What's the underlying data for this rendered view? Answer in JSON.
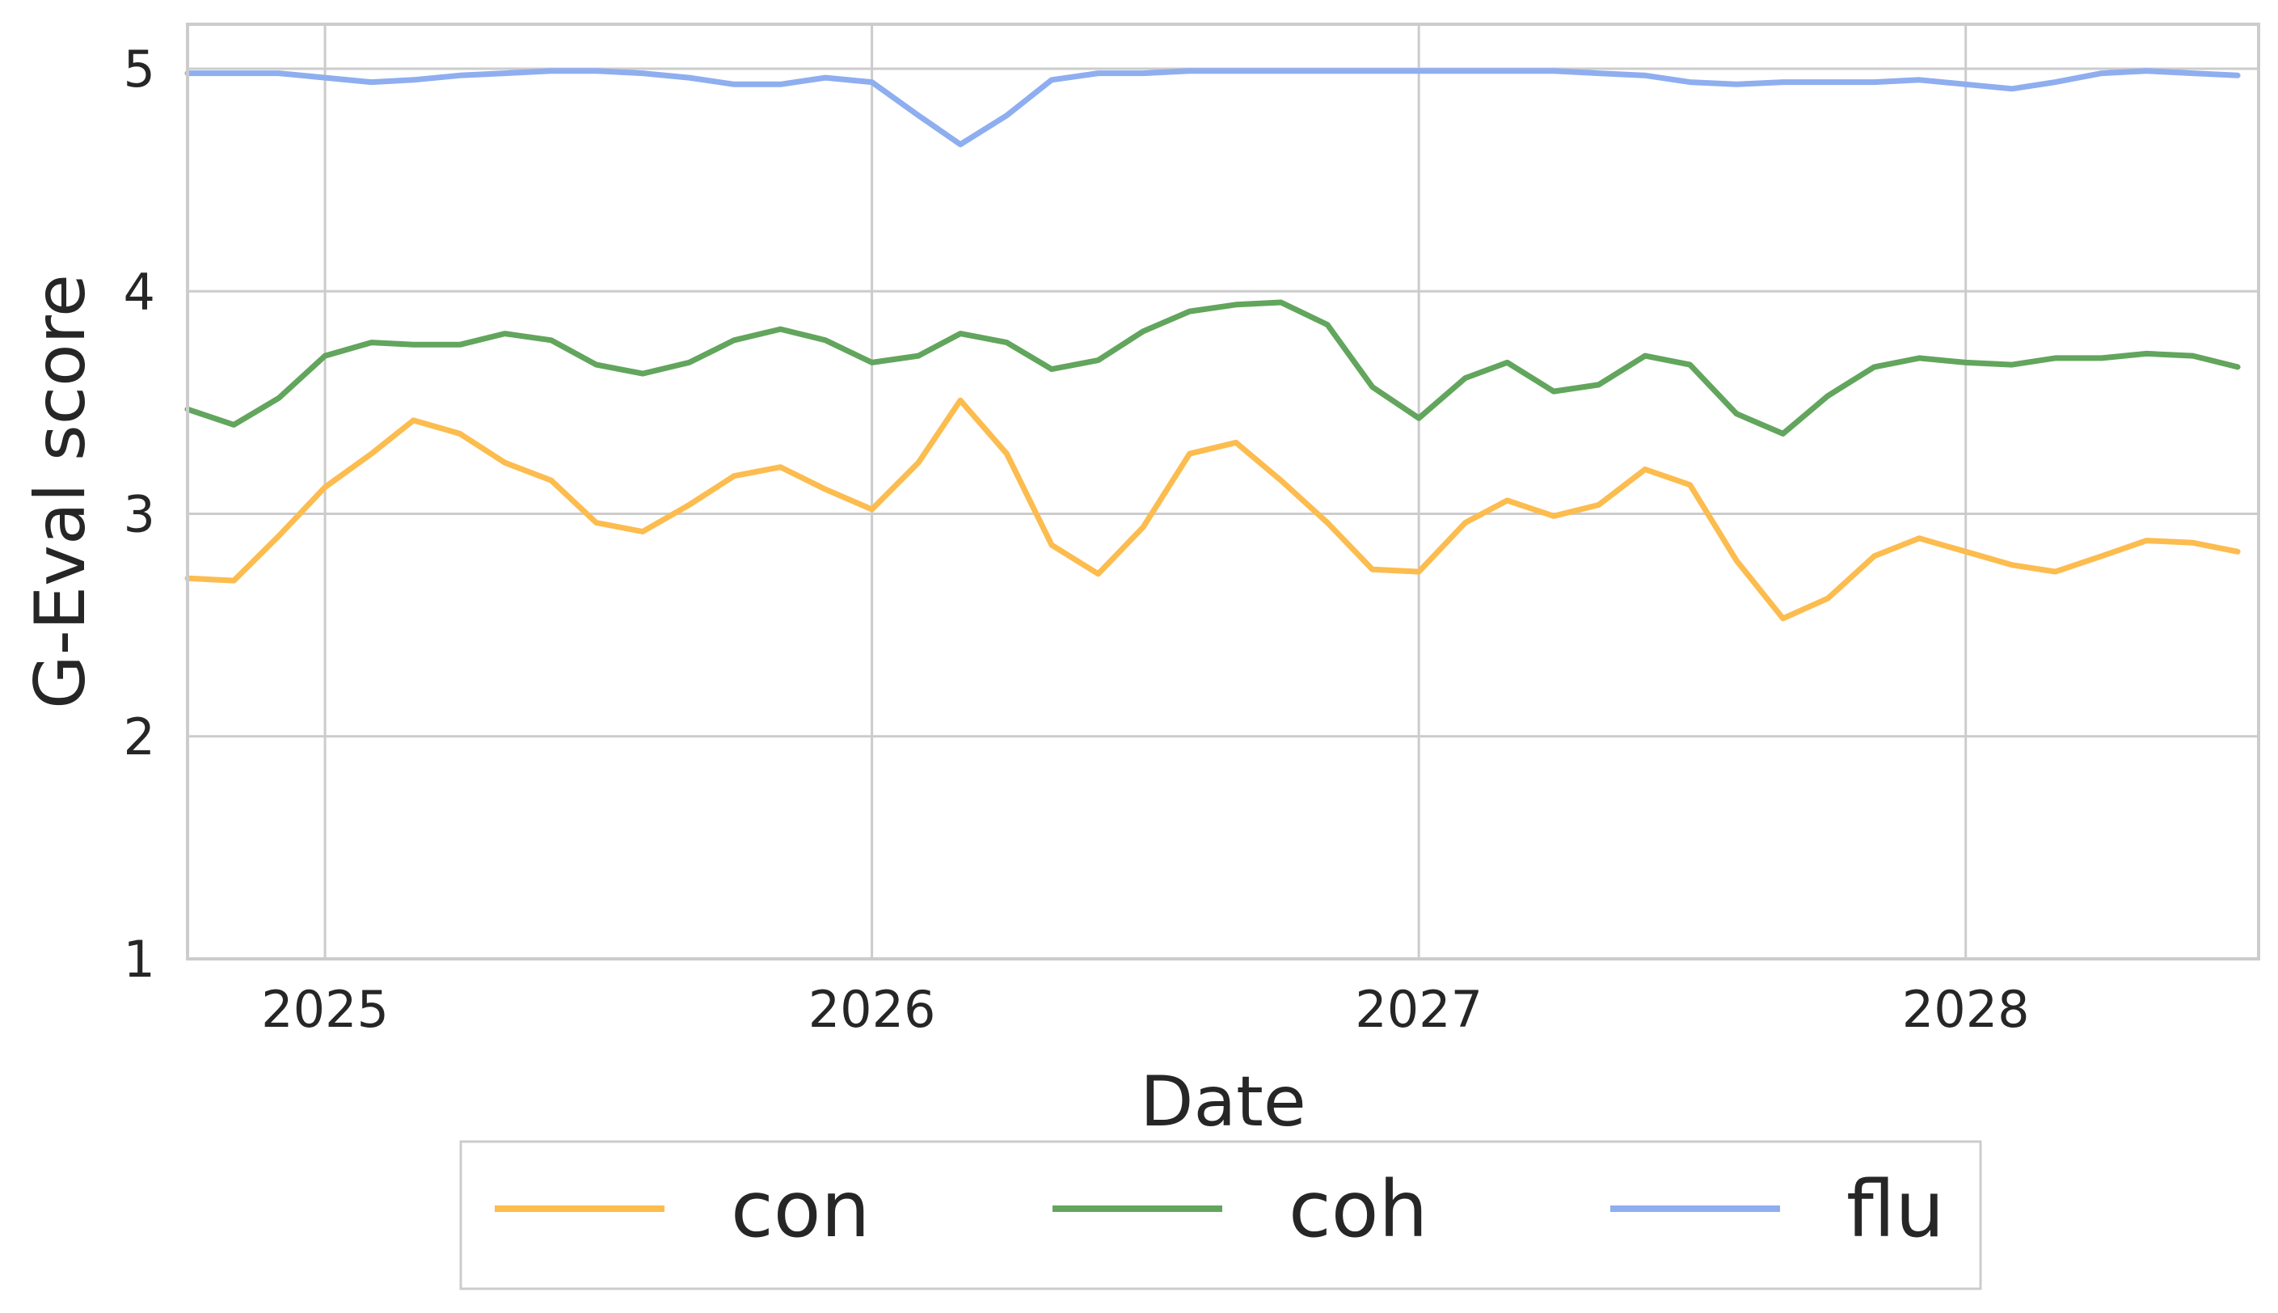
{
  "chart_data": {
    "type": "line",
    "title": "",
    "xlabel": "Date",
    "ylabel": "G-Eval score",
    "x_ticks": [
      "2025",
      "2026",
      "2027",
      "2028"
    ],
    "y_ticks": [
      "1",
      "2",
      "3",
      "4",
      "5"
    ],
    "xlim": [
      "2024-10-01",
      "2028-07-15"
    ],
    "ylim": [
      1,
      5.2
    ],
    "grid": true,
    "legend_position": "bottom-center",
    "x": [
      "2024-10",
      "2024-11",
      "2024-12",
      "2025-01",
      "2025-02",
      "2025-03",
      "2025-04",
      "2025-05",
      "2025-06",
      "2025-07",
      "2025-08",
      "2025-09",
      "2025-10",
      "2025-11",
      "2025-12",
      "2026-01",
      "2026-02",
      "2026-03",
      "2026-04",
      "2026-05",
      "2026-06",
      "2026-07",
      "2026-08",
      "2026-09",
      "2026-10",
      "2026-11",
      "2026-12",
      "2027-01",
      "2027-02",
      "2027-03",
      "2027-04",
      "2027-05",
      "2027-06",
      "2027-07",
      "2027-08",
      "2027-09",
      "2027-10",
      "2027-11",
      "2027-12",
      "2028-01",
      "2028-02",
      "2028-03",
      "2028-04",
      "2028-05",
      "2028-06",
      "2028-07"
    ],
    "series": [
      {
        "name": "con",
        "color": "#fcbc4e",
        "values": [
          2.71,
          2.7,
          2.9,
          3.12,
          3.27,
          3.42,
          3.36,
          3.23,
          3.15,
          2.96,
          2.92,
          3.04,
          3.17,
          3.21,
          3.11,
          3.02,
          3.23,
          3.51,
          3.27,
          2.86,
          2.73,
          2.94,
          3.27,
          3.32,
          3.15,
          2.96,
          2.75,
          2.74,
          2.96,
          3.06,
          2.99,
          3.04,
          3.2,
          3.13,
          2.79,
          2.53,
          2.62,
          2.81,
          2.89,
          2.83,
          2.77,
          2.74,
          2.81,
          2.88,
          2.87,
          2.83
        ]
      },
      {
        "name": "coh",
        "color": "#62a55d",
        "values": [
          3.47,
          3.4,
          3.52,
          3.71,
          3.77,
          3.76,
          3.76,
          3.81,
          3.78,
          3.67,
          3.63,
          3.68,
          3.78,
          3.83,
          3.78,
          3.68,
          3.71,
          3.81,
          3.77,
          3.65,
          3.69,
          3.82,
          3.91,
          3.94,
          3.95,
          3.85,
          3.57,
          3.43,
          3.61,
          3.68,
          3.55,
          3.58,
          3.71,
          3.67,
          3.45,
          3.36,
          3.53,
          3.66,
          3.7,
          3.68,
          3.67,
          3.7,
          3.7,
          3.72,
          3.71,
          3.66
        ]
      },
      {
        "name": "flu",
        "color": "#8eaef0",
        "values": [
          4.98,
          4.98,
          4.98,
          4.96,
          4.94,
          4.95,
          4.97,
          4.98,
          4.99,
          4.99,
          4.98,
          4.96,
          4.93,
          4.93,
          4.96,
          4.94,
          4.79,
          4.66,
          4.79,
          4.95,
          4.98,
          4.98,
          4.99,
          4.99,
          4.99,
          4.99,
          4.99,
          4.99,
          4.99,
          4.99,
          4.99,
          4.98,
          4.97,
          4.94,
          4.93,
          4.94,
          4.94,
          4.94,
          4.95,
          4.93,
          4.91,
          4.94,
          4.98,
          4.99,
          4.98,
          4.97
        ]
      }
    ]
  }
}
